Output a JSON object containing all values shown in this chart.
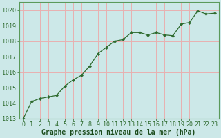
{
  "x": [
    0,
    1,
    2,
    3,
    4,
    5,
    6,
    7,
    8,
    9,
    10,
    11,
    12,
    13,
    14,
    15,
    16,
    17,
    18,
    19,
    20,
    21,
    22,
    23
  ],
  "y": [
    1013.0,
    1014.1,
    1014.3,
    1014.4,
    1014.5,
    1015.1,
    1015.5,
    1015.8,
    1016.4,
    1017.2,
    1017.6,
    1018.0,
    1018.1,
    1018.55,
    1018.55,
    1018.4,
    1018.55,
    1018.4,
    1018.35,
    1019.1,
    1019.2,
    1019.95,
    1019.75,
    1019.8
  ],
  "line_color": "#2d6a2d",
  "marker_color": "#2d6a2d",
  "bg_color": "#cce8e8",
  "grid_color": "#e8b0b0",
  "border_color": "#5a9a5a",
  "xlabel": "Graphe pression niveau de la mer (hPa)",
  "xlabel_color": "#1a4a1a",
  "xlabel_fontsize": 7.0,
  "tick_color": "#2d6a2d",
  "tick_fontsize": 6.0,
  "ylim": [
    1013.0,
    1020.5
  ],
  "xlim": [
    -0.5,
    23.5
  ],
  "yticks": [
    1013,
    1014,
    1015,
    1016,
    1017,
    1018,
    1019,
    1020
  ],
  "xticks": [
    0,
    1,
    2,
    3,
    4,
    5,
    6,
    7,
    8,
    9,
    10,
    11,
    12,
    13,
    14,
    15,
    16,
    17,
    18,
    19,
    20,
    21,
    22,
    23
  ]
}
